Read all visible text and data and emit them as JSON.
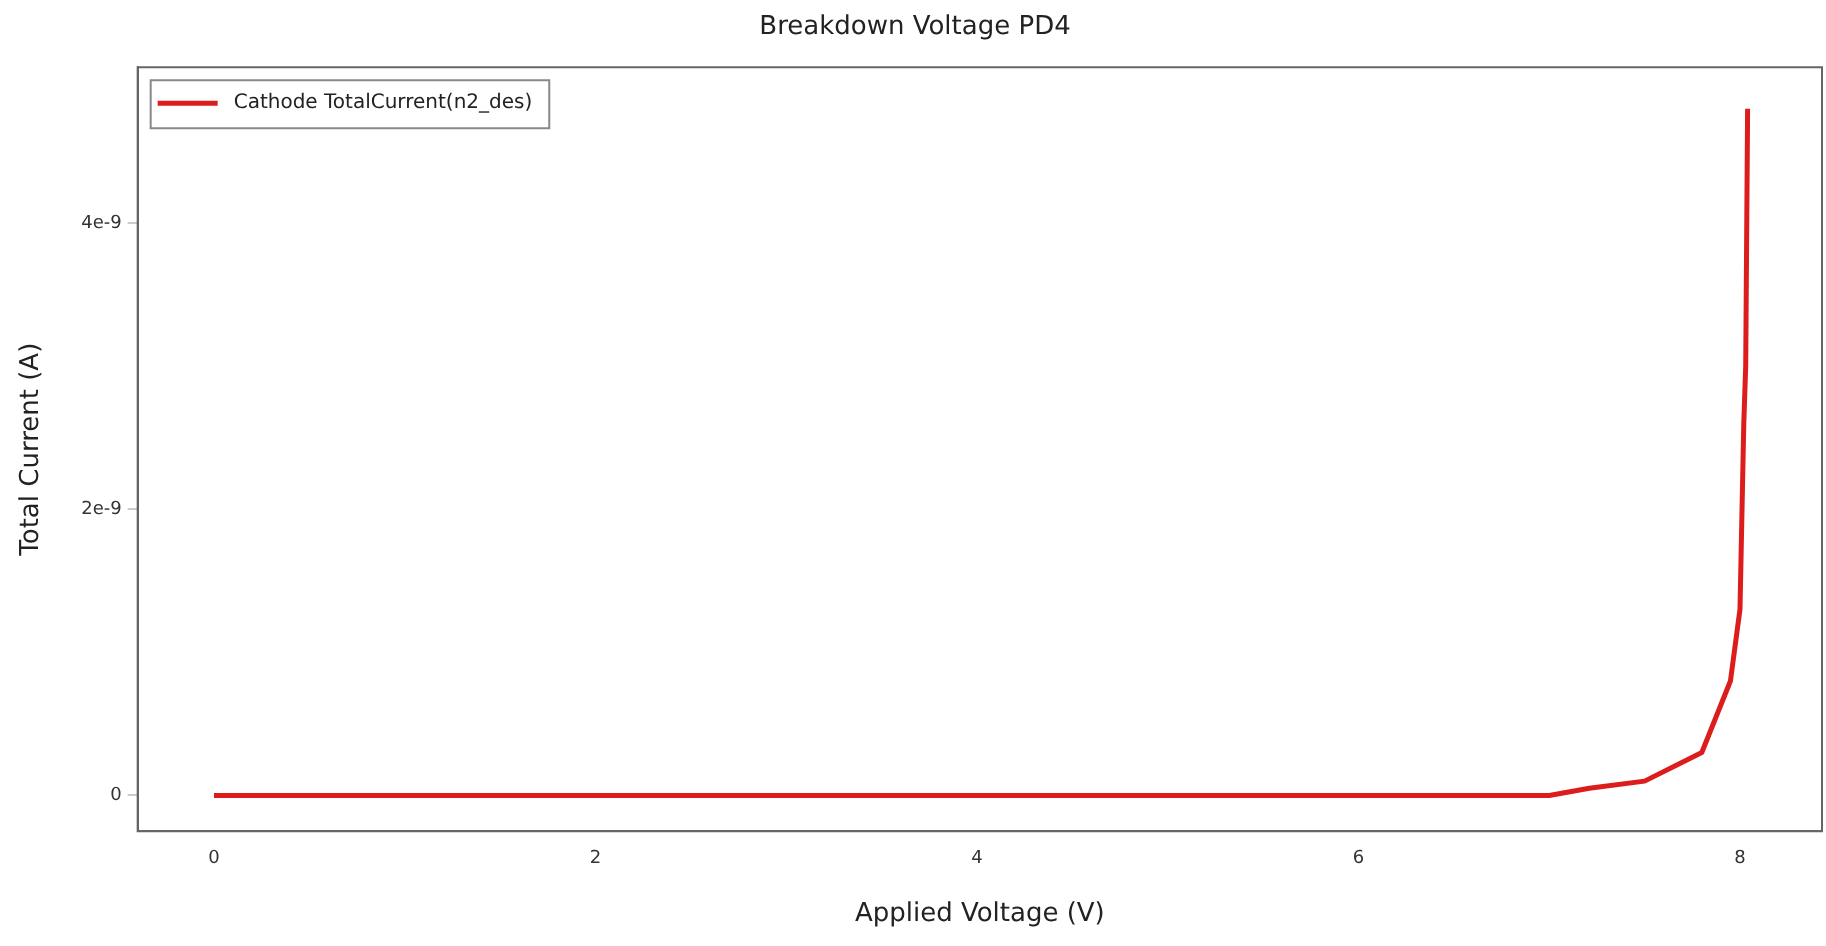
{
  "chart_data": {
    "type": "line",
    "title": "Breakdown Voltage PD4",
    "xlabel": "Applied Voltage (V)",
    "ylabel": "Total Current (A)",
    "x": [
      0,
      1,
      2,
      3,
      4,
      5,
      6,
      6.56,
      7.0,
      7.21,
      7.5,
      7.8,
      7.95,
      8.0,
      8.02,
      8.03,
      8.04
    ],
    "series": [
      {
        "name": "Cathode TotalCurrent(n2_des)",
        "color": "#dd1c1c",
        "values": [
          0,
          0,
          0,
          0,
          0,
          0,
          0,
          0,
          0,
          5e-11,
          1e-10,
          3e-10,
          8e-10,
          1.3e-09,
          2.6e-09,
          3e-09,
          4.8e-09
        ]
      }
    ],
    "xlim": [
      -0.4,
      8.43
    ],
    "xticks": [
      0,
      2,
      4,
      6,
      8
    ],
    "ylim": [
      -2.5e-10,
      5.09e-09
    ],
    "yticks": [
      0,
      {
        "value": 2e-09,
        "label": "2e-9"
      },
      {
        "value": 4e-09,
        "label": "4e-9"
      }
    ],
    "grid": false,
    "legend": "top left",
    "marker": "none",
    "line_style": "solid"
  }
}
